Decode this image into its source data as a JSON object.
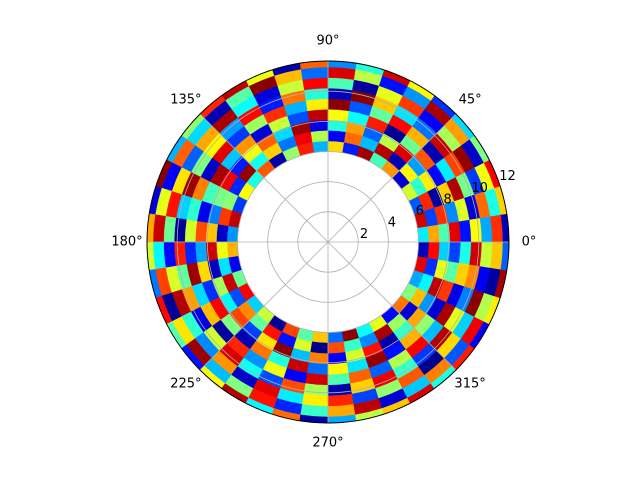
{
  "chart_data": {
    "type": "heatmap",
    "projection": "polar",
    "colormap": "jet",
    "value_range": [
      0,
      1
    ],
    "rlim": [
      0,
      12
    ],
    "r_ticks": [
      2,
      4,
      6,
      8,
      10,
      12
    ],
    "r_tick_labels": [
      "2",
      "4",
      "6",
      "8",
      "10",
      "12"
    ],
    "theta_tick_labels": [
      "0°",
      "45°",
      "90°",
      "135°",
      "180°",
      "225°",
      "270°",
      "315°"
    ],
    "radial_edges": [
      6.0,
      6.7,
      7.4,
      8.1,
      8.8,
      9.5,
      10.2,
      10.9,
      11.6,
      12.3
    ],
    "theta_bins": 40,
    "grid": true,
    "values": [
      [
        0.36,
        0.92,
        0.21,
        0.58,
        0.08,
        0.73,
        0.44,
        0.97,
        0.15,
        0.66,
        0.3,
        0.85,
        0.52,
        0.04,
        0.79,
        0.4,
        0.62,
        0.18,
        0.94,
        0.27,
        0.7,
        0.11,
        0.48,
        0.88,
        0.33,
        0.57,
        0.02,
        0.81,
        0.46,
        0.68,
        0.23,
        0.99,
        0.38,
        0.6,
        0.13,
        0.76,
        0.5,
        0.29,
        0.9,
        0.06
      ],
      [
        0.71,
        0.19,
        0.84,
        0.42,
        0.63,
        0.05,
        0.95,
        0.31,
        0.77,
        0.12,
        0.55,
        0.89,
        0.24,
        0.67,
        0.39,
        0.98,
        0.16,
        0.51,
        0.82,
        0.07,
        0.61,
        0.35,
        0.93,
        0.2,
        0.74,
        0.47,
        0.86,
        0.14,
        0.59,
        0.01,
        0.8,
        0.43,
        0.26,
        0.96,
        0.53,
        0.09,
        0.69,
        0.37,
        0.17,
        0.87
      ],
      [
        0.45,
        0.83,
        0.03,
        0.64,
        0.28,
        0.91,
        0.56,
        0.22,
        0.72,
        0.41,
        0.1,
        0.97,
        0.34,
        0.78,
        0.61,
        0.15,
        0.89,
        0.49,
        0.25,
        0.68,
        0.92,
        0.06,
        0.54,
        0.37,
        0.81,
        0.19,
        0.65,
        0.99,
        0.31,
        0.75,
        0.12,
        0.58,
        0.86,
        0.04,
        0.43,
        0.71,
        0.27,
        0.94,
        0.6,
        0.33
      ],
      [
        0.9,
        0.26,
        0.67,
        0.13,
        0.79,
        0.48,
        0.02,
        0.85,
        0.38,
        0.62,
        0.94,
        0.2,
        0.57,
        0.09,
        0.73,
        0.32,
        0.96,
        0.44,
        0.11,
        0.8,
        0.29,
        0.66,
        0.17,
        0.88,
        0.5,
        0.05,
        0.76,
        0.41,
        0.93,
        0.23,
        0.63,
        0.35,
        0.98,
        0.14,
        0.7,
        0.52,
        0.08,
        0.82,
        0.46,
        0.19
      ],
      [
        0.14,
        0.59,
        0.95,
        0.36,
        0.05,
        0.7,
        0.87,
        0.47,
        0.21,
        0.99,
        0.64,
        0.3,
        0.83,
        0.53,
        0.18,
        0.9,
        0.07,
        0.75,
        0.42,
        0.58,
        0.16,
        0.97,
        0.34,
        0.69,
        0.03,
        0.84,
        0.27,
        0.61,
        0.12,
        0.92,
        0.45,
        0.78,
        0.22,
        0.55,
        0.88,
        0.31,
        0.96,
        0.1,
        0.67,
        0.4
      ],
      [
        0.62,
        0.08,
        0.49,
        0.81,
        0.93,
        0.24,
        0.35,
        0.68,
        0.99,
        0.06,
        0.41,
        0.76,
        0.15,
        0.87,
        0.28,
        0.63,
        0.5,
        0.97,
        0.33,
        0.02,
        0.85,
        0.47,
        0.72,
        0.1,
        0.58,
        0.91,
        0.39,
        0.2,
        0.8,
        0.54,
        0.04,
        0.67,
        0.89,
        0.43,
        0.18,
        0.95,
        0.6,
        0.25,
        0.74,
        0.92
      ],
      [
        0.29,
        0.77,
        0.18,
        0.98,
        0.54,
        0.12,
        0.82,
        0.6,
        0.03,
        0.45,
        0.88,
        0.57,
        0.09,
        0.38,
        0.96,
        0.71,
        0.22,
        0.65,
        0.86,
        0.48,
        0.13,
        0.59,
        0.95,
        0.42,
        0.26,
        0.73,
        0.07,
        0.9,
        0.36,
        0.64,
        0.84,
        0.19,
        0.52,
        0.79,
        0.01,
        0.66,
        0.33,
        0.99,
        0.11,
        0.57
      ],
      [
        0.83,
        0.4,
        0.61,
        0.07,
        0.72,
        0.96,
        0.27,
        0.14,
        0.56,
        0.91,
        0.23,
        0.69,
        0.99,
        0.46,
        0.05,
        0.34,
        0.78,
        0.12,
        0.6,
        0.93,
        0.37,
        0.81,
        0.02,
        0.65,
        0.97,
        0.31,
        0.5,
        0.86,
        0.16,
        0.43,
        0.71,
        0.94,
        0.08,
        0.32,
        0.75,
        0.21,
        0.89,
        0.55,
        0.03,
        0.68
      ],
      [
        0.05,
        0.67,
        0.88,
        0.5,
        0.34,
        0.17,
        0.63,
        0.92,
        0.41,
        0.26,
        0.78,
        0.04,
        0.61,
        0.94,
        0.84,
        0.52,
        0.3,
        0.99,
        0.09,
        0.71,
        0.58,
        0.24,
        0.87,
        0.46,
        0.14,
        0.62,
        0.95,
        0.37,
        0.77,
        0.03,
        0.29,
        0.56,
        0.68,
        0.91,
        0.4,
        0.85,
        0.12,
        0.64,
        0.96,
        0.22
      ]
    ]
  }
}
